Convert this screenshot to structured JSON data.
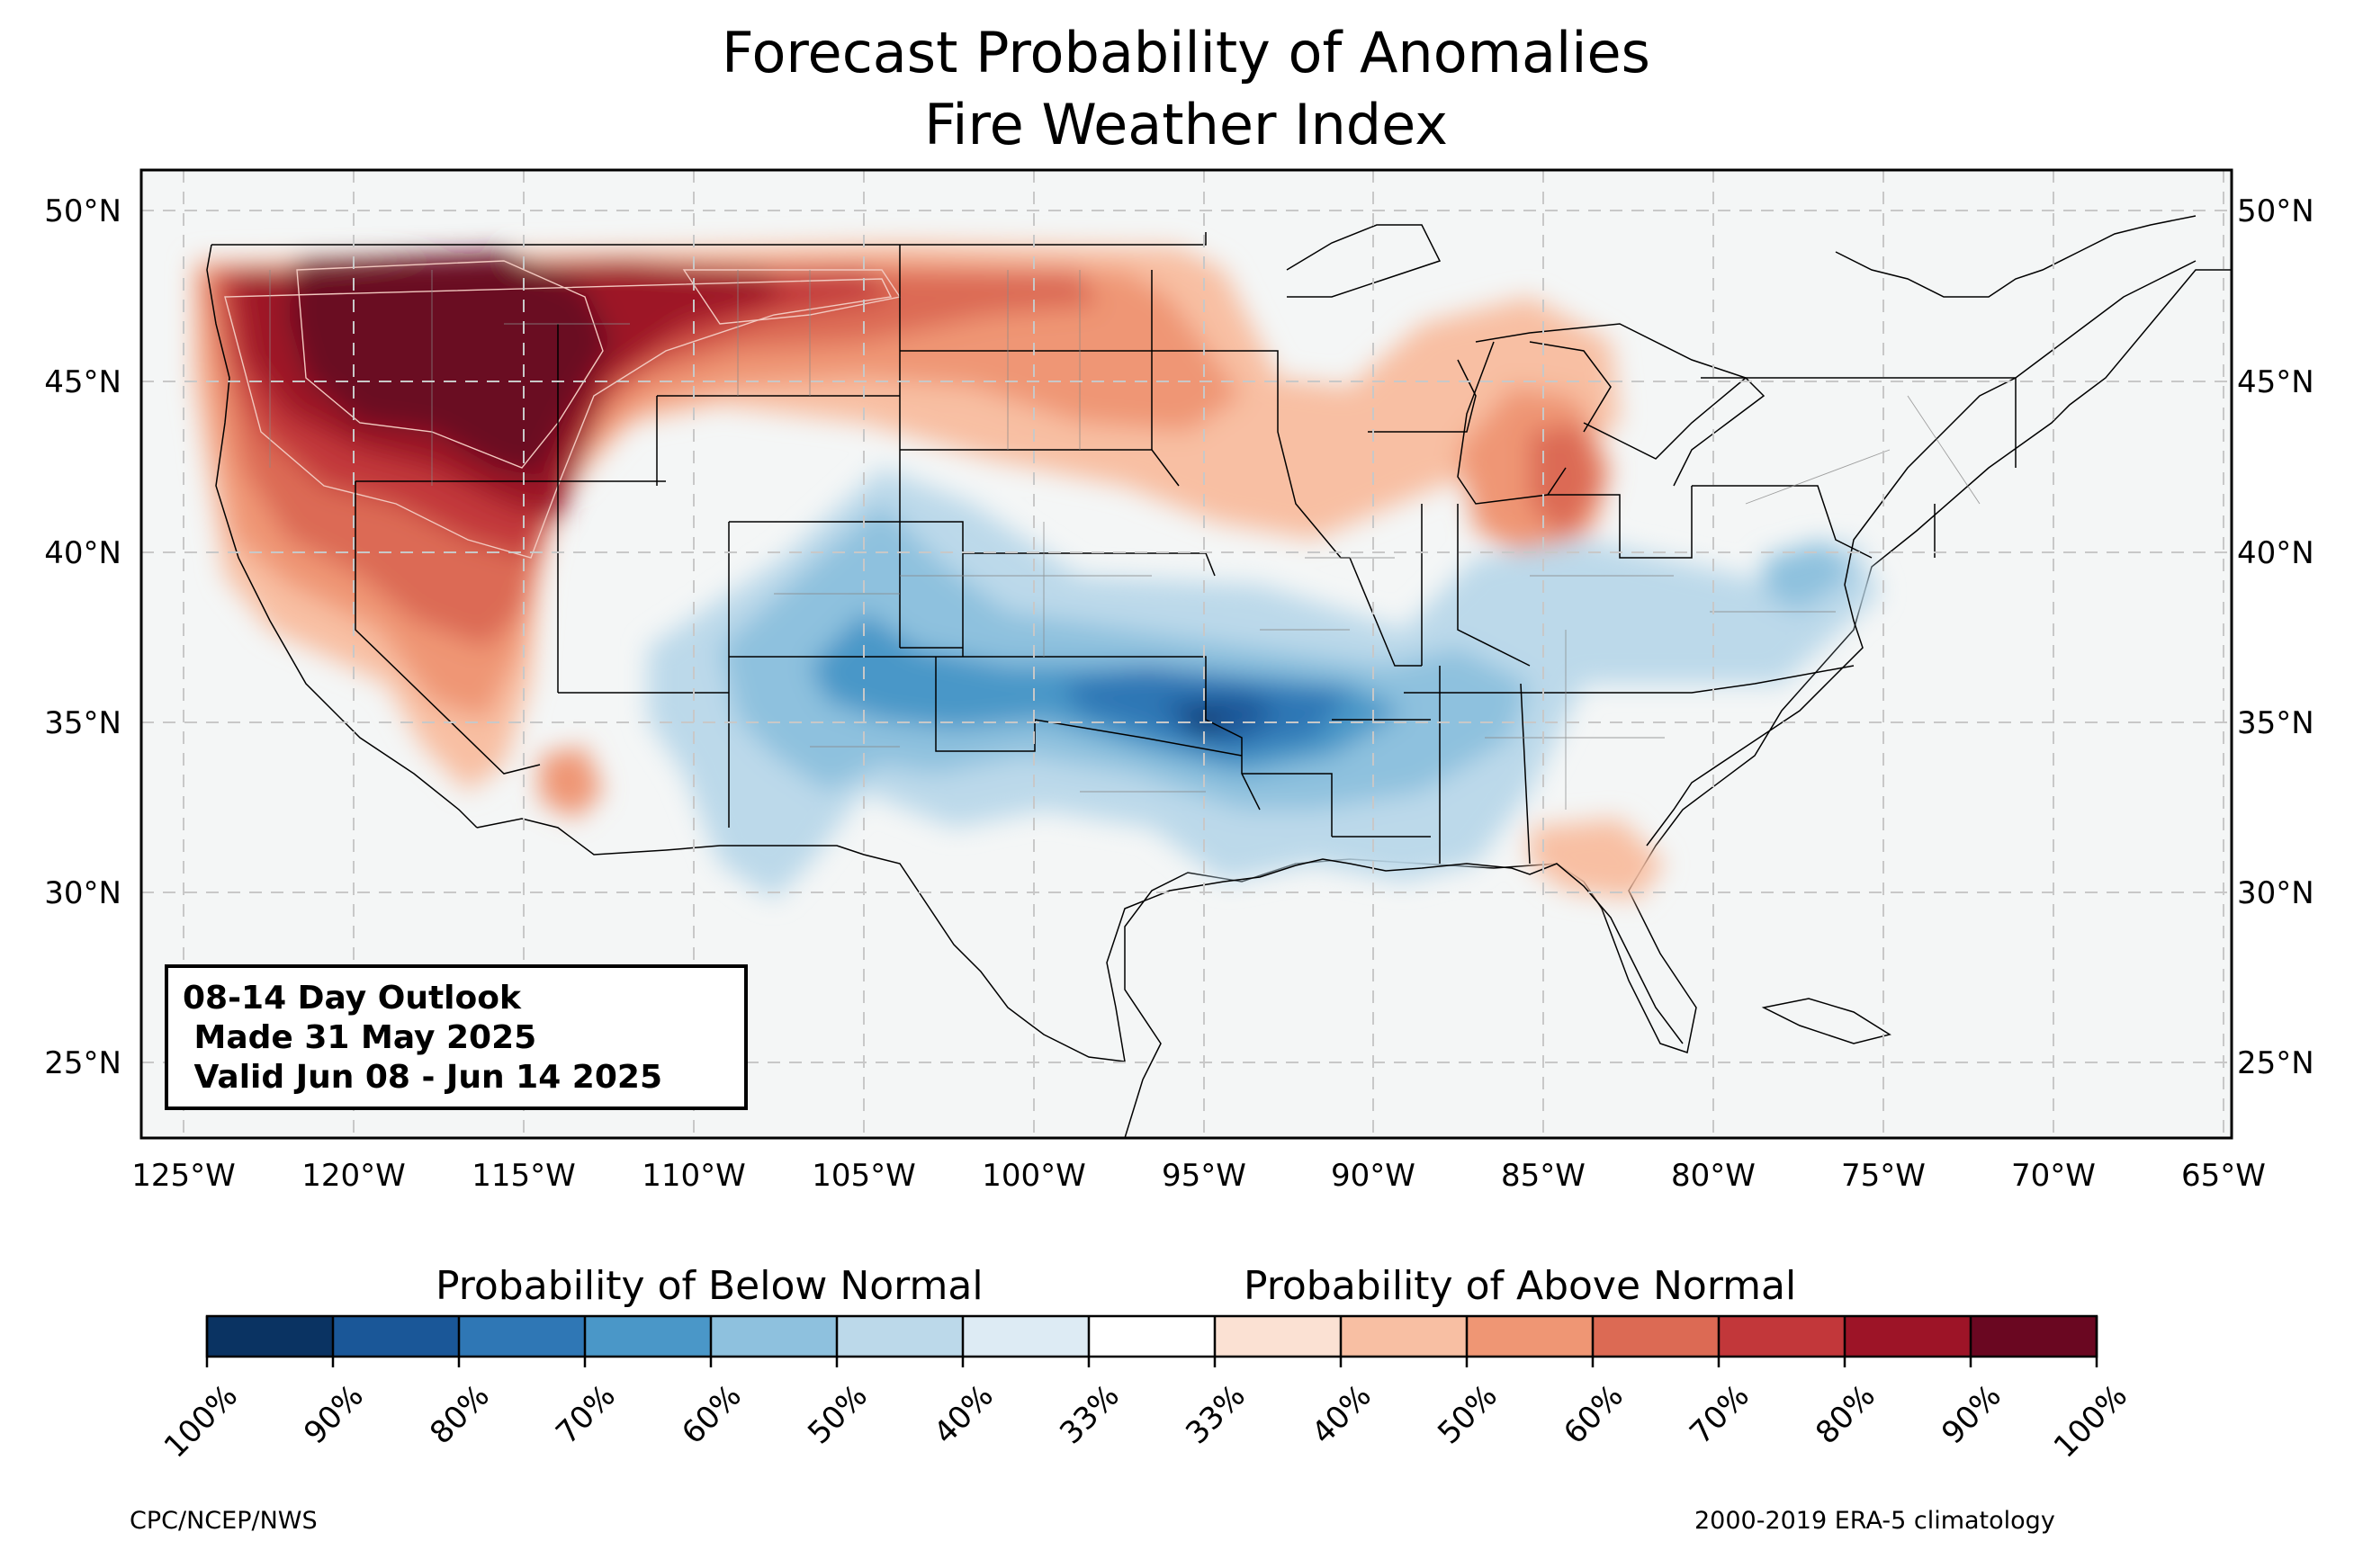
{
  "title": [
    "Forecast Probability of Anomalies",
    "Fire Weather Index"
  ],
  "info_box": [
    "08-14 Day Outlook",
    " Made 31 May 2025",
    " Valid Jun 08 - Jun 14 2025"
  ],
  "lon_labels": [
    "125°W",
    "120°W",
    "115°W",
    "110°W",
    "105°W",
    "100°W",
    "95°W",
    "90°W",
    "85°W",
    "80°W",
    "75°W",
    "70°W",
    "65°W"
  ],
  "lat_labels": [
    "50°N",
    "45°N",
    "40°N",
    "35°N",
    "30°N",
    "25°N"
  ],
  "colorbar": {
    "below_label": "Probability of Below Normal",
    "above_label": "Probability of Above Normal",
    "tick_labels": [
      "100%",
      "90%",
      "80%",
      "70%",
      "60%",
      "50%",
      "40%",
      "33%",
      "33%",
      "40%",
      "50%",
      "60%",
      "70%",
      "80%",
      "90%",
      "100%"
    ],
    "colors": [
      "#0a3362",
      "#1a5798",
      "#2f77b5",
      "#4a97c8",
      "#8ec1de",
      "#bcd9ea",
      "#ddebf4",
      "#ffffff",
      "#fbe1d3",
      "#f8bfa3",
      "#ef9674",
      "#dc6a54",
      "#c2373a",
      "#9d1427",
      "#6a0721"
    ]
  },
  "credits": {
    "left": "CPC/NCEP/NWS",
    "right": "2000-2019 ERA-5 climatology"
  },
  "colors": {
    "ocean": "#f4f6f6",
    "land_bg": "#f7f7f7"
  }
}
